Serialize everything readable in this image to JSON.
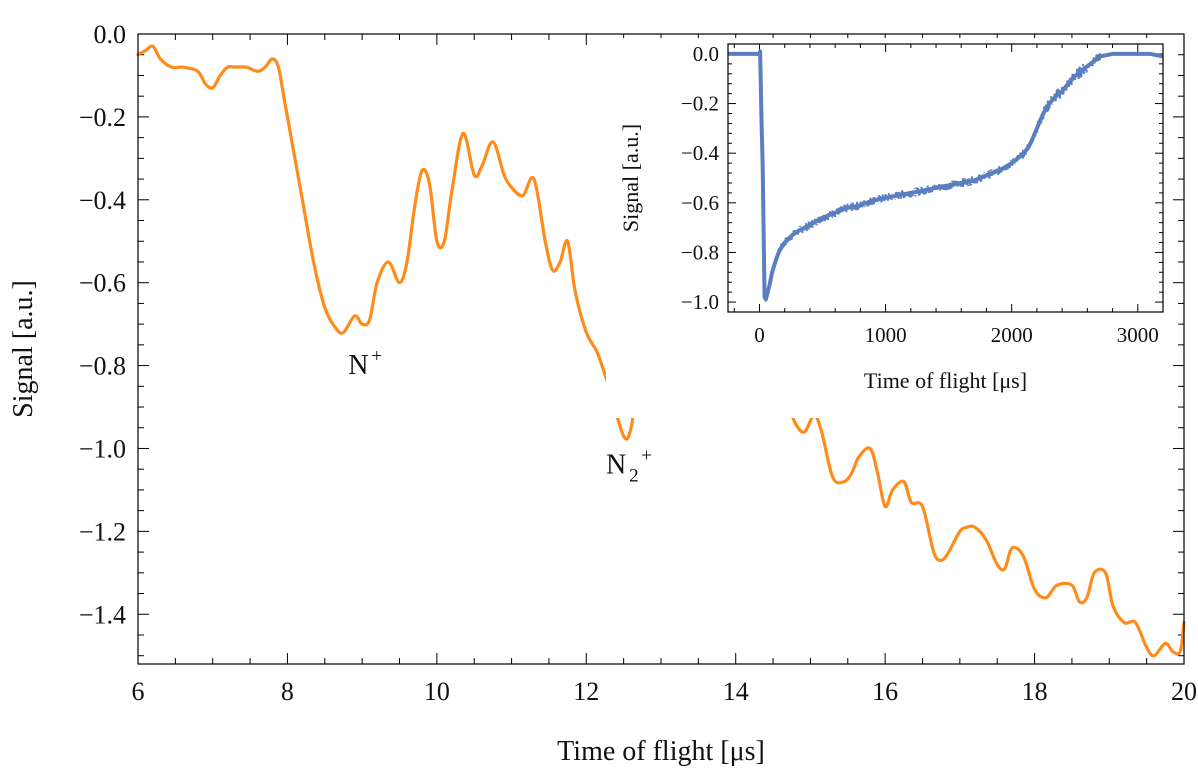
{
  "chart_data": [
    {
      "type": "line",
      "xlabel": "Time of flight [μs]",
      "ylabel": "Signal [a.u.]",
      "xlim": [
        6,
        20
      ],
      "ylim": [
        -1.52,
        0.0
      ],
      "xticks": [
        6,
        8,
        10,
        12,
        14,
        16,
        18,
        20
      ],
      "xtick_labels": [
        "6",
        "8",
        "10",
        "12",
        "14",
        "16",
        "18",
        "20"
      ],
      "yticks": [
        0.0,
        -0.2,
        -0.4,
        -0.6,
        -0.8,
        -1.0,
        -1.2,
        -1.4
      ],
      "ytick_labels": [
        "0.0",
        "−0.2",
        "−0.4",
        "−0.6",
        "−0.8",
        "−1.0",
        "−1.2",
        "−1.4"
      ],
      "grid": false,
      "color": "#ff8c1a",
      "annotations": [
        {
          "label": "N",
          "superscript": "+",
          "subscript": "",
          "x": 8.95,
          "y": -0.82
        },
        {
          "label": "N",
          "superscript": "+",
          "subscript": "2",
          "x": 12.4,
          "y": -1.06
        }
      ],
      "series": [
        {
          "x": [
            6.0,
            6.1,
            6.2,
            6.3,
            6.45,
            6.6,
            6.8,
            6.9,
            7.0,
            7.1,
            7.2,
            7.3,
            7.45,
            7.6,
            7.7,
            7.8,
            7.88,
            7.95,
            8.05,
            8.2,
            8.35,
            8.5,
            8.65,
            8.75,
            8.9,
            9.0,
            9.1,
            9.2,
            9.35,
            9.5,
            9.6,
            9.7,
            9.8,
            9.9,
            10.0,
            10.1,
            10.2,
            10.35,
            10.5,
            10.6,
            10.75,
            10.9,
            11.0,
            11.15,
            11.3,
            11.45,
            11.55,
            11.65,
            11.75,
            11.85,
            12.0,
            12.15,
            12.3,
            12.5,
            12.6,
            12.7,
            12.85,
            13.0,
            13.15,
            13.3,
            13.5,
            13.65,
            13.8,
            13.95,
            14.1,
            14.25,
            14.4,
            14.5,
            14.65,
            14.8,
            14.92,
            15.05,
            15.15,
            15.3,
            15.45,
            15.55,
            15.65,
            15.8,
            15.9,
            16.0,
            16.1,
            16.25,
            16.35,
            16.5,
            16.65,
            16.75,
            16.85,
            17.0,
            17.1,
            17.2,
            17.35,
            17.5,
            17.6,
            17.7,
            17.85,
            18.0,
            18.15,
            18.3,
            18.5,
            18.6,
            18.7,
            18.8,
            18.95,
            19.05,
            19.2,
            19.35,
            19.5,
            19.6,
            19.75,
            19.85,
            19.95,
            20.0
          ],
          "y": [
            -0.05,
            -0.04,
            -0.03,
            -0.06,
            -0.08,
            -0.08,
            -0.09,
            -0.12,
            -0.13,
            -0.1,
            -0.08,
            -0.08,
            -0.08,
            -0.09,
            -0.08,
            -0.06,
            -0.08,
            -0.15,
            -0.25,
            -0.4,
            -0.55,
            -0.66,
            -0.71,
            -0.72,
            -0.68,
            -0.7,
            -0.69,
            -0.6,
            -0.55,
            -0.6,
            -0.55,
            -0.42,
            -0.33,
            -0.36,
            -0.5,
            -0.5,
            -0.38,
            -0.24,
            -0.34,
            -0.32,
            -0.26,
            -0.34,
            -0.37,
            -0.39,
            -0.35,
            -0.5,
            -0.57,
            -0.55,
            -0.5,
            -0.62,
            -0.72,
            -0.77,
            -0.85,
            -0.97,
            -0.95,
            -0.83,
            -0.79,
            -0.75,
            -0.78,
            -0.79,
            -0.71,
            -0.75,
            -0.85,
            -0.92,
            -0.88,
            -0.87,
            -0.91,
            -0.9,
            -0.88,
            -0.94,
            -0.96,
            -0.92,
            -0.96,
            -1.07,
            -1.08,
            -1.06,
            -1.02,
            -1.0,
            -1.06,
            -1.14,
            -1.1,
            -1.08,
            -1.13,
            -1.14,
            -1.25,
            -1.27,
            -1.25,
            -1.2,
            -1.19,
            -1.19,
            -1.22,
            -1.28,
            -1.29,
            -1.24,
            -1.26,
            -1.34,
            -1.36,
            -1.33,
            -1.33,
            -1.37,
            -1.36,
            -1.3,
            -1.3,
            -1.38,
            -1.42,
            -1.42,
            -1.48,
            -1.5,
            -1.47,
            -1.49,
            -1.49,
            -1.42
          ]
        }
      ]
    },
    {
      "type": "line",
      "xlabel": "Time of flight [μs]",
      "ylabel": "Signal [a.u.]",
      "xlim": [
        -250,
        3200
      ],
      "ylim": [
        -1.04,
        0.04
      ],
      "xticks": [
        0,
        1000,
        2000,
        3000
      ],
      "xtick_labels": [
        "0",
        "1000",
        "2000",
        "3000"
      ],
      "yticks": [
        0.0,
        -0.2,
        -0.4,
        -0.6,
        -0.8,
        -1.0
      ],
      "ytick_labels": [
        "0.0",
        "−0.2",
        "−0.4",
        "−0.6",
        "−0.8",
        "−1.0"
      ],
      "grid": false,
      "color": "#5b7fbe",
      "series": [
        {
          "x": [
            -250,
            -100,
            0,
            5,
            15,
            25,
            40,
            50,
            60,
            80,
            100,
            130,
            160,
            200,
            260,
            320,
            400,
            500,
            600,
            700,
            800,
            900,
            1000,
            1100,
            1200,
            1300,
            1400,
            1500,
            1600,
            1700,
            1800,
            1900,
            2000,
            2050,
            2100,
            2150,
            2200,
            2250,
            2300,
            2350,
            2400,
            2450,
            2500,
            2550,
            2600,
            2650,
            2700,
            2800,
            2900,
            3000,
            3100,
            3200
          ],
          "y": [
            0.0,
            0.0,
            0.0,
            0.01,
            -0.25,
            -0.45,
            -0.98,
            -0.99,
            -0.97,
            -0.93,
            -0.88,
            -0.83,
            -0.79,
            -0.76,
            -0.73,
            -0.71,
            -0.69,
            -0.66,
            -0.64,
            -0.62,
            -0.61,
            -0.59,
            -0.58,
            -0.57,
            -0.56,
            -0.55,
            -0.54,
            -0.53,
            -0.52,
            -0.51,
            -0.49,
            -0.47,
            -0.44,
            -0.42,
            -0.4,
            -0.36,
            -0.3,
            -0.24,
            -0.2,
            -0.17,
            -0.15,
            -0.12,
            -0.09,
            -0.07,
            -0.05,
            -0.03,
            -0.01,
            0.0,
            0.0,
            0.0,
            0.0,
            -0.01
          ]
        }
      ]
    }
  ]
}
